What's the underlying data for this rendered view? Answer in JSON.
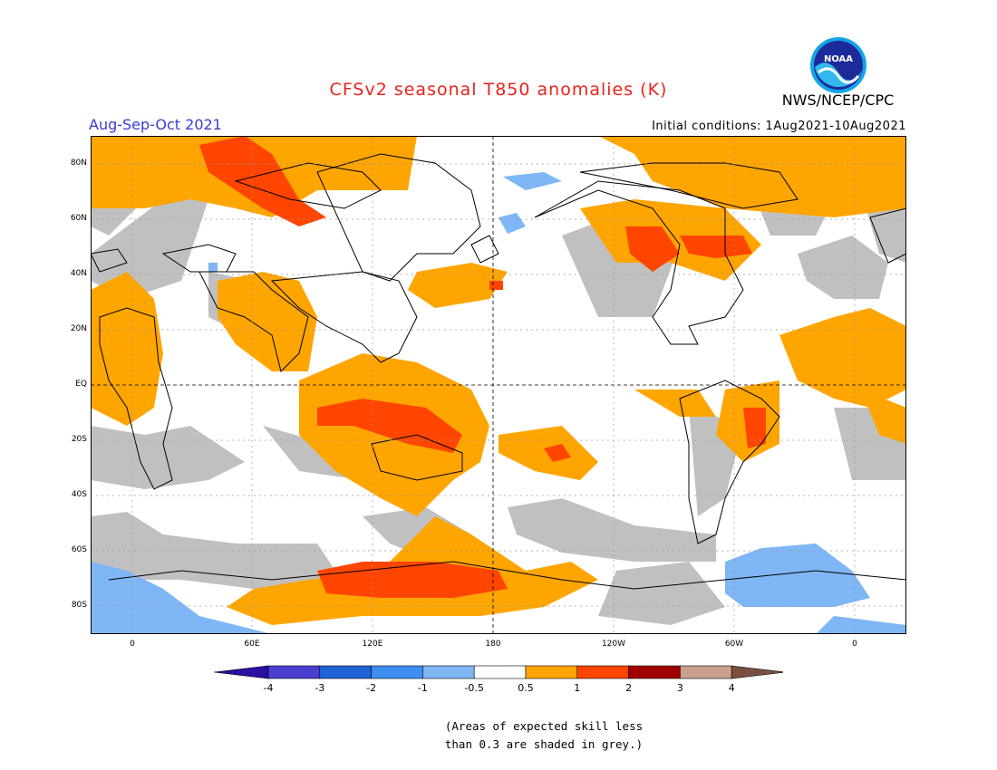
{
  "header": {
    "title": "CFSv2 seasonal T850 anomalies (K)",
    "organization": "NWS/NCEP/CPC",
    "period": "Aug-Sep-Oct 2021",
    "initial_conditions": "Initial conditions: 1Aug2021-10Aug2021",
    "logo_text": "NOAA"
  },
  "map": {
    "latitude_labels": [
      "80N",
      "60N",
      "40N",
      "20N",
      "EQ",
      "20S",
      "40S",
      "60S",
      "80S"
    ],
    "longitude_labels": [
      "0",
      "60E",
      "120E",
      "180",
      "120W",
      "60W",
      "0"
    ],
    "colors": {
      "grey_low_skill": "#c0c0c0",
      "neutral": "#ffffff",
      "warm_0_5_to_1": "#ffa500",
      "warm_1_to_2": "#ff4500",
      "cold_minus_1_to_minus_0_5": "#7fb6f5"
    }
  },
  "colorbar": {
    "tick_labels": [
      "-4",
      "-3",
      "-2",
      "-1",
      "-0.5",
      "0.5",
      "1",
      "2",
      "3",
      "4"
    ],
    "colors": [
      "#2b0fa3",
      "#4a3fd1",
      "#1f63d6",
      "#3d8ef0",
      "#7fb6f5",
      "#ffffff",
      "#ffa500",
      "#ff4500",
      "#a00000",
      "#c9a08f",
      "#7a5040"
    ]
  },
  "footnote": {
    "line1": "(Areas of expected skill less",
    "line2": "than 0.3 are shaded in grey.)"
  }
}
